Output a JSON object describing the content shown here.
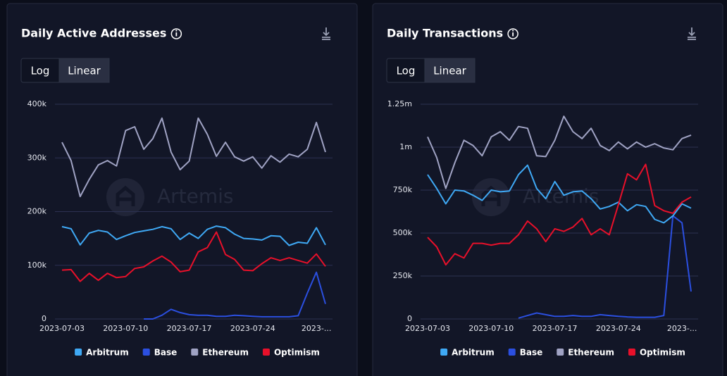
{
  "chart_data": [
    {
      "type": "line",
      "title": "Daily Active Addresses",
      "scale_options": [
        "Log",
        "Linear"
      ],
      "scale": "Linear",
      "watermark": "Artemis",
      "x": [
        "2023-07-03",
        "2023-07-04",
        "2023-07-05",
        "2023-07-06",
        "2023-07-07",
        "2023-07-08",
        "2023-07-09",
        "2023-07-10",
        "2023-07-11",
        "2023-07-12",
        "2023-07-13",
        "2023-07-14",
        "2023-07-15",
        "2023-07-16",
        "2023-07-17",
        "2023-07-18",
        "2023-07-19",
        "2023-07-20",
        "2023-07-21",
        "2023-07-22",
        "2023-07-23",
        "2023-07-24",
        "2023-07-25",
        "2023-07-26",
        "2023-07-27",
        "2023-07-28",
        "2023-07-29",
        "2023-07-30",
        "2023-07-31",
        "2023-08-01"
      ],
      "xticks": [
        "2023-07-03",
        "2023-07-10",
        "2023-07-17",
        "2023-07-24",
        {
          "value": "2023-07-31",
          "label": "2023-..."
        }
      ],
      "ylim": [
        0,
        400000
      ],
      "yticks": [
        0,
        {
          "value": 100000,
          "label": "100k"
        },
        {
          "value": 200000,
          "label": "200k"
        },
        {
          "value": 300000,
          "label": "300k"
        },
        {
          "value": 400000,
          "label": "400k"
        }
      ],
      "grid": true,
      "legend": "bottom",
      "series": [
        {
          "name": "Arbitrum",
          "color": "#3fa9f5",
          "values": [
            172000,
            168000,
            138000,
            160000,
            165000,
            162000,
            148000,
            155000,
            161000,
            164000,
            167000,
            172000,
            168000,
            148000,
            160000,
            150000,
            167000,
            173000,
            170000,
            158000,
            150000,
            149000,
            147000,
            155000,
            154000,
            137000,
            143000,
            141000,
            170000,
            138000
          ]
        },
        {
          "name": "Base",
          "color": "#2b4fe0",
          "values": [
            null,
            null,
            null,
            null,
            null,
            null,
            null,
            null,
            null,
            0,
            0,
            7000,
            18000,
            12000,
            8000,
            7000,
            7000,
            5000,
            5000,
            7000,
            6000,
            5000,
            4000,
            4000,
            4000,
            4000,
            6000,
            48000,
            87000,
            28000
          ]
        },
        {
          "name": "Ethereum",
          "color": "#a0a3c4",
          "values": [
            329000,
            295000,
            228000,
            260000,
            287000,
            295000,
            285000,
            351000,
            358000,
            316000,
            336000,
            374000,
            311000,
            278000,
            294000,
            374000,
            344000,
            303000,
            329000,
            302000,
            294000,
            302000,
            281000,
            304000,
            292000,
            307000,
            302000,
            316000,
            366000,
            311000
          ]
        },
        {
          "name": "Optimism",
          "color": "#e8102a",
          "values": [
            91000,
            92000,
            70000,
            85000,
            72000,
            85000,
            77000,
            79000,
            94000,
            97000,
            108000,
            117000,
            106000,
            88000,
            91000,
            125000,
            133000,
            162000,
            120000,
            111000,
            91000,
            90000,
            103000,
            114000,
            109000,
            114000,
            109000,
            104000,
            121000,
            98000
          ]
        }
      ]
    },
    {
      "type": "line",
      "title": "Daily Transactions",
      "scale_options": [
        "Log",
        "Linear"
      ],
      "scale": "Linear",
      "watermark": "Artemis",
      "x": [
        "2023-07-03",
        "2023-07-04",
        "2023-07-05",
        "2023-07-06",
        "2023-07-07",
        "2023-07-08",
        "2023-07-09",
        "2023-07-10",
        "2023-07-11",
        "2023-07-12",
        "2023-07-13",
        "2023-07-14",
        "2023-07-15",
        "2023-07-16",
        "2023-07-17",
        "2023-07-18",
        "2023-07-19",
        "2023-07-20",
        "2023-07-21",
        "2023-07-22",
        "2023-07-23",
        "2023-07-24",
        "2023-07-25",
        "2023-07-26",
        "2023-07-27",
        "2023-07-28",
        "2023-07-29",
        "2023-07-30",
        "2023-07-31",
        "2023-08-01"
      ],
      "xticks": [
        "2023-07-03",
        "2023-07-10",
        "2023-07-17",
        "2023-07-24",
        {
          "value": "2023-07-31",
          "label": "2023-..."
        }
      ],
      "ylim": [
        0,
        1250000
      ],
      "yticks": [
        0,
        {
          "value": 250000,
          "label": "250k"
        },
        {
          "value": 500000,
          "label": "500k"
        },
        {
          "value": 750000,
          "label": "750k"
        },
        {
          "value": 1000000,
          "label": "1m"
        },
        {
          "value": 1250000,
          "label": "1.25m"
        }
      ],
      "grid": true,
      "legend": "bottom",
      "series": [
        {
          "name": "Arbitrum",
          "color": "#3fa9f5",
          "values": [
            840000,
            760000,
            670000,
            750000,
            745000,
            720000,
            690000,
            750000,
            740000,
            745000,
            840000,
            895000,
            760000,
            700000,
            800000,
            720000,
            740000,
            745000,
            700000,
            640000,
            655000,
            680000,
            630000,
            665000,
            655000,
            580000,
            560000,
            600000,
            670000,
            645000
          ]
        },
        {
          "name": "Base",
          "color": "#2b4fe0",
          "values": [
            null,
            null,
            null,
            null,
            null,
            null,
            null,
            null,
            null,
            null,
            5000,
            20000,
            35000,
            25000,
            15000,
            15000,
            20000,
            15000,
            15000,
            25000,
            20000,
            15000,
            12000,
            10000,
            10000,
            10000,
            20000,
            600000,
            560000,
            160000
          ]
        },
        {
          "name": "Ethereum",
          "color": "#a0a3c4",
          "values": [
            1060000,
            940000,
            760000,
            910000,
            1040000,
            1010000,
            950000,
            1060000,
            1090000,
            1040000,
            1120000,
            1110000,
            950000,
            945000,
            1040000,
            1180000,
            1090000,
            1050000,
            1110000,
            1010000,
            980000,
            1030000,
            990000,
            1030000,
            1000000,
            1020000,
            995000,
            985000,
            1050000,
            1070000
          ]
        },
        {
          "name": "Optimism",
          "color": "#e8102a",
          "values": [
            475000,
            420000,
            315000,
            380000,
            355000,
            440000,
            440000,
            430000,
            440000,
            440000,
            490000,
            570000,
            525000,
            450000,
            525000,
            510000,
            535000,
            585000,
            490000,
            525000,
            490000,
            665000,
            845000,
            810000,
            900000,
            660000,
            630000,
            615000,
            680000,
            710000
          ]
        }
      ]
    }
  ]
}
